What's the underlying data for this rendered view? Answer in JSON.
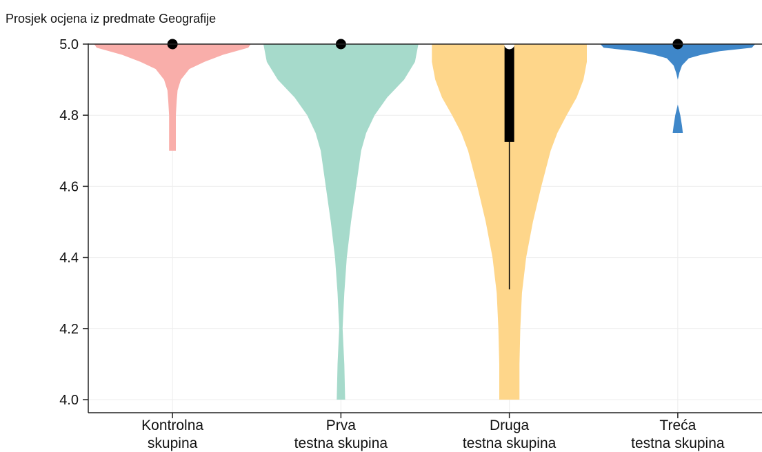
{
  "chart_data": {
    "type": "violin",
    "ylabel": "Prosjek ocjena iz predmate Geografije",
    "ylim": [
      4.0,
      5.0
    ],
    "yticks": [
      "4.0",
      "4.2",
      "4.4",
      "4.6",
      "4.8",
      "5.0"
    ],
    "grid": true,
    "categories": [
      [
        "Kontrolna",
        "skupina"
      ],
      [
        "Prva",
        "testna skupina"
      ],
      [
        "Druga",
        "testna skupina"
      ],
      [
        "Treća",
        "testna skupina"
      ]
    ],
    "series": [
      {
        "color": "#f9aeaa",
        "min": 4.7,
        "max": 5.0,
        "median": 5.0,
        "q1": 5.0,
        "q3": 5.0,
        "whisker_low": 5.0,
        "whisker_high": 5.0,
        "median_marker": "black",
        "profile": [
          [
            5.0,
            0.93
          ],
          [
            4.99,
            0.9
          ],
          [
            4.97,
            0.6
          ],
          [
            4.95,
            0.38
          ],
          [
            4.93,
            0.2
          ],
          [
            4.9,
            0.1
          ],
          [
            4.87,
            0.06
          ],
          [
            4.84,
            0.05
          ],
          [
            4.8,
            0.04
          ],
          [
            4.75,
            0.04
          ],
          [
            4.7,
            0.04
          ]
        ]
      },
      {
        "color": "#a6dacb",
        "min": 4.0,
        "max": 5.0,
        "median": 5.0,
        "q1": 5.0,
        "q3": 5.0,
        "whisker_low": 5.0,
        "whisker_high": 5.0,
        "median_marker": "black",
        "profile": [
          [
            5.0,
            0.92
          ],
          [
            4.95,
            0.88
          ],
          [
            4.9,
            0.75
          ],
          [
            4.85,
            0.55
          ],
          [
            4.8,
            0.4
          ],
          [
            4.75,
            0.3
          ],
          [
            4.7,
            0.24
          ],
          [
            4.6,
            0.18
          ],
          [
            4.5,
            0.12
          ],
          [
            4.4,
            0.07
          ],
          [
            4.3,
            0.04
          ],
          [
            4.2,
            0.02
          ],
          [
            4.1,
            0.04
          ],
          [
            4.0,
            0.05
          ]
        ]
      },
      {
        "color": "#fed68a",
        "min": 4.0,
        "max": 5.0,
        "median": 5.0,
        "q1": 4.725,
        "q3": 5.0,
        "whisker_low": 4.31,
        "whisker_high": 5.0,
        "median_marker": "white",
        "profile": [
          [
            5.0,
            0.92
          ],
          [
            4.95,
            0.92
          ],
          [
            4.9,
            0.88
          ],
          [
            4.85,
            0.8
          ],
          [
            4.8,
            0.68
          ],
          [
            4.75,
            0.57
          ],
          [
            4.7,
            0.49
          ],
          [
            4.6,
            0.38
          ],
          [
            4.5,
            0.28
          ],
          [
            4.4,
            0.2
          ],
          [
            4.3,
            0.15
          ],
          [
            4.2,
            0.13
          ],
          [
            4.1,
            0.12
          ],
          [
            4.0,
            0.12
          ]
        ]
      },
      {
        "color": "#3f87c9",
        "min": 4.75,
        "max": 5.0,
        "median": 5.0,
        "q1": 5.0,
        "q3": 5.0,
        "whisker_low": 5.0,
        "whisker_high": 5.0,
        "median_marker": "black",
        "profile": [
          [
            5.0,
            0.92
          ],
          [
            4.99,
            0.88
          ],
          [
            4.98,
            0.5
          ],
          [
            4.97,
            0.28
          ],
          [
            4.96,
            0.13
          ],
          [
            4.94,
            0.05
          ],
          [
            4.92,
            0.02
          ],
          [
            4.9,
            0.0
          ],
          [
            4.85,
            0.0
          ],
          [
            4.83,
            0.0
          ],
          [
            4.8,
            0.03
          ],
          [
            4.77,
            0.05
          ],
          [
            4.75,
            0.06
          ]
        ]
      }
    ]
  }
}
